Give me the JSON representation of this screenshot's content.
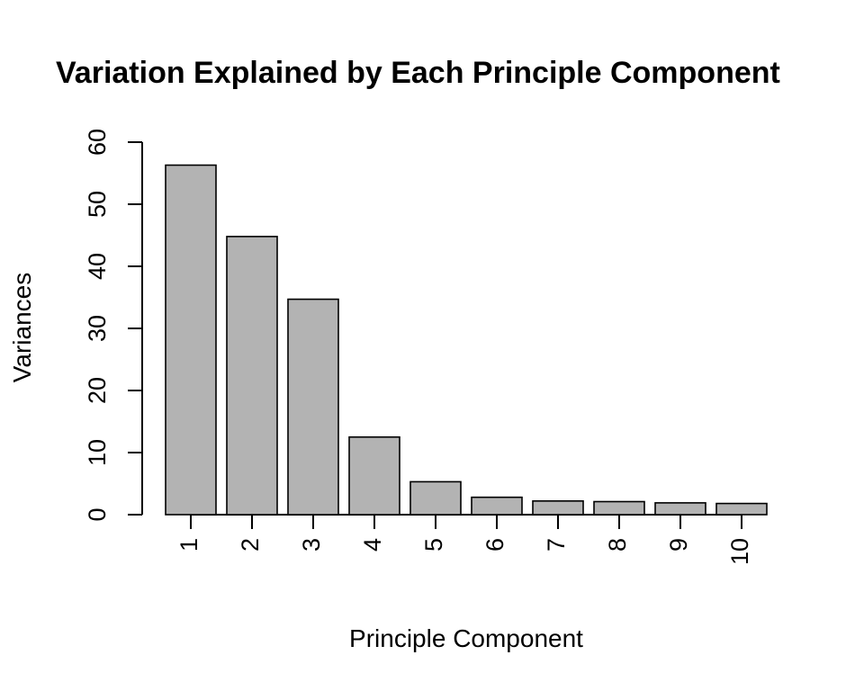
{
  "chart_data": {
    "type": "bar",
    "title": "Variation Explained by Each Principle Component",
    "xlabel": "Principle Component",
    "ylabel": "Variances",
    "categories": [
      "1",
      "2",
      "3",
      "4",
      "5",
      "6",
      "7",
      "8",
      "9",
      "10"
    ],
    "values": [
      56.3,
      44.8,
      34.7,
      12.5,
      5.3,
      2.8,
      2.2,
      2.1,
      1.9,
      1.8
    ],
    "ylim": [
      0,
      60
    ],
    "yticks": [
      0,
      10,
      20,
      30,
      40,
      50,
      60
    ],
    "grid": false,
    "bar_color": "#b3b3b3",
    "tick_label_orientation": "rotated-vertical"
  }
}
